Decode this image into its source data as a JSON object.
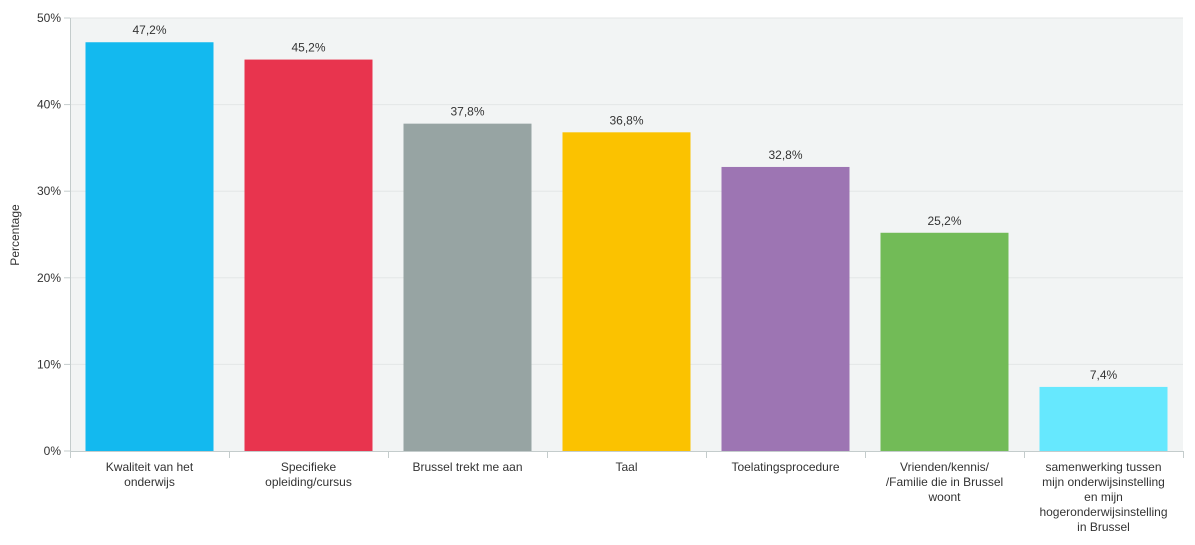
{
  "chart_data": {
    "type": "bar",
    "categories": [
      [
        "Kwaliteit van het",
        "onderwijs"
      ],
      [
        "Specifieke",
        "opleiding/cursus"
      ],
      [
        "Brussel trekt me aan"
      ],
      [
        "Taal"
      ],
      [
        "Toelatingsprocedure"
      ],
      [
        "Vrienden/kennis/",
        "/Familie die in Brussel",
        "woont"
      ],
      [
        "samenwerking tussen",
        "mijn onderwijsinstelling",
        "en mijn",
        "hogeronderwijsinstelling",
        "in Brussel"
      ]
    ],
    "values": [
      47.2,
      45.2,
      37.8,
      36.8,
      32.8,
      25.2,
      7.4
    ],
    "value_labels": [
      "47,2%",
      "45,2%",
      "37,8%",
      "36,8%",
      "32,8%",
      "25,2%",
      "7,4%"
    ],
    "colors": [
      "#13b9ef",
      "#e8344e",
      "#97a4a3",
      "#fbc200",
      "#9d75b3",
      "#72bb57",
      "#66e8fe"
    ],
    "ylabel": "Percentage",
    "ylim": [
      0,
      50
    ],
    "yticks": [
      0,
      10,
      20,
      30,
      40,
      50
    ],
    "ytick_labels": [
      "0%",
      "10%",
      "20%",
      "30%",
      "40%",
      "50%"
    ],
    "grid": true,
    "plot_background": "#f2f4f4",
    "grid_color": "#e3e6e6",
    "axis_color": "#c4cccc"
  }
}
